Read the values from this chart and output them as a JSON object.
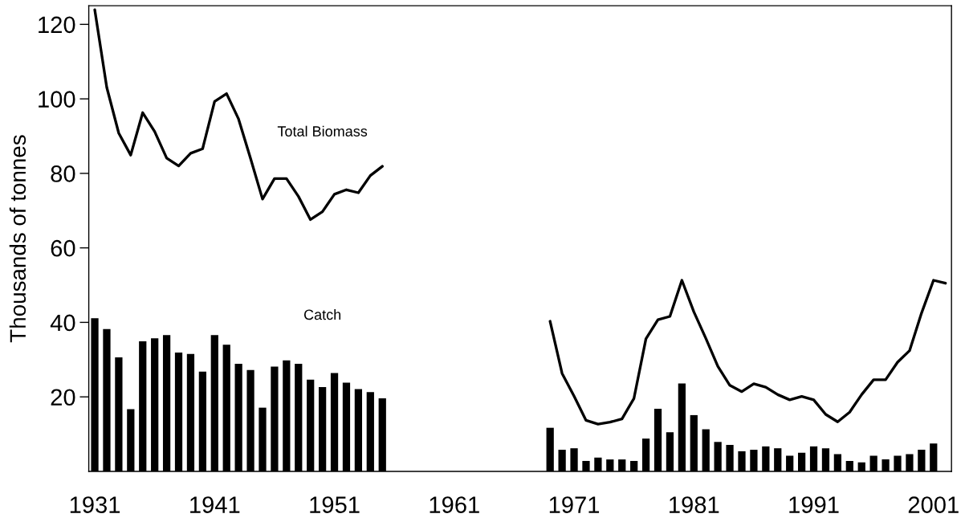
{
  "chart_data": {
    "type": "bar",
    "ylabel": "Thousands of tonnes",
    "x": [
      1931,
      1932,
      1933,
      1934,
      1935,
      1936,
      1937,
      1938,
      1939,
      1940,
      1941,
      1942,
      1943,
      1944,
      1945,
      1946,
      1947,
      1948,
      1949,
      1950,
      1951,
      1952,
      1953,
      1954,
      1955,
      1956,
      1957,
      1958,
      1959,
      1960,
      1961,
      1962,
      1963,
      1964,
      1965,
      1966,
      1967,
      1968,
      1969,
      1970,
      1971,
      1972,
      1973,
      1974,
      1975,
      1976,
      1977,
      1978,
      1979,
      1980,
      1981,
      1982,
      1983,
      1984,
      1985,
      1986,
      1987,
      1988,
      1989,
      1990,
      1991,
      1992,
      1993,
      1994,
      1995,
      1996,
      1997,
      1998,
      1999,
      2000,
      2001,
      2002
    ],
    "series": [
      {
        "name": "Catch",
        "color": "#000000",
        "values": [
          41.1,
          38.2,
          30.6,
          16.7,
          34.9,
          35.7,
          36.6,
          31.9,
          31.5,
          26.8,
          36.6,
          34.0,
          28.9,
          27.2,
          17.1,
          28.1,
          29.8,
          28.9,
          24.6,
          22.6,
          26.4,
          23.8,
          22.1,
          21.3,
          19.6,
          null,
          null,
          null,
          null,
          null,
          null,
          null,
          null,
          null,
          null,
          null,
          null,
          null,
          11.7,
          5.8,
          6.2,
          2.8,
          3.7,
          3.2,
          3.2,
          2.8,
          8.8,
          16.8,
          10.5,
          23.6,
          15.1,
          11.3,
          7.9,
          7.1,
          5.4,
          5.8,
          6.7,
          6.2,
          4.2,
          5.0,
          6.7,
          6.2,
          4.6,
          2.8,
          2.4,
          4.2,
          3.2,
          4.2,
          4.6,
          5.8,
          7.5,
          null
        ]
      },
      {
        "name": "Total Biomass",
        "type": "line",
        "color": "#000000",
        "values": [
          123.9,
          103.1,
          90.8,
          84.9,
          96.3,
          91.2,
          84.1,
          82.0,
          85.4,
          86.6,
          99.3,
          101.4,
          94.6,
          84.0,
          73.1,
          78.6,
          78.6,
          73.8,
          67.6,
          69.7,
          74.4,
          75.6,
          74.8,
          79.4,
          81.9,
          null,
          null,
          null,
          null,
          null,
          null,
          null,
          null,
          null,
          null,
          null,
          null,
          null,
          40.3,
          26.3,
          20.2,
          13.7,
          12.7,
          13.2,
          14.1,
          19.6,
          35.6,
          40.7,
          41.6,
          51.3,
          42.8,
          35.7,
          28.2,
          23.1,
          21.4,
          23.5,
          22.6,
          20.6,
          19.2,
          20.1,
          19.2,
          15.3,
          13.3,
          15.9,
          20.6,
          24.6,
          24.6,
          29.3,
          32.4,
          42.5,
          51.3,
          50.5
        ]
      }
    ],
    "xlim": [
      1930.5,
      2002.5
    ],
    "xticks": [
      1931,
      1941,
      1951,
      1961,
      1971,
      1981,
      1991,
      2001
    ],
    "ylim": [
      0,
      125
    ],
    "yticks": [
      20,
      40,
      60,
      80,
      100,
      120
    ],
    "grid": false,
    "legend": false,
    "marker": "none",
    "line_style": "solid"
  }
}
